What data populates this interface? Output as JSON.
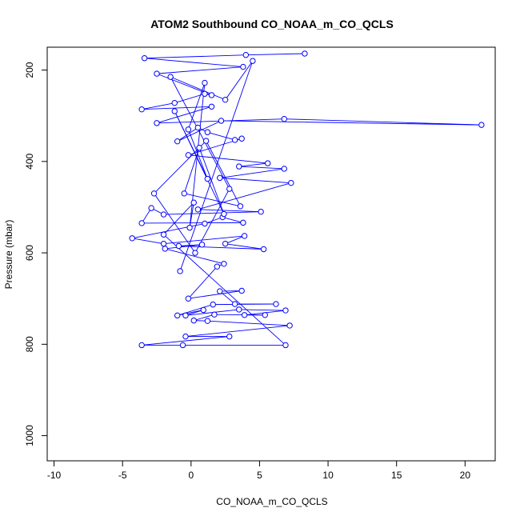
{
  "chart_data": {
    "type": "line",
    "title": "ATOM2 Southbound CO_NOAA_m_CO_QCLS",
    "xlabel": "CO_NOAA_m_CO_QCLS",
    "ylabel": "Pressure (mbar)",
    "xlim": [
      -10.5,
      22.2
    ],
    "ylim": [
      1055,
      150
    ],
    "y_reversed": true,
    "x_ticks": [
      -10,
      -5,
      0,
      5,
      10,
      15,
      20
    ],
    "x_tick_labels": [
      "-10",
      "-5",
      "0",
      "5",
      "10",
      "15",
      "20"
    ],
    "y_ticks": [
      200,
      400,
      600,
      800,
      1000
    ],
    "y_tick_labels": [
      "200",
      "400",
      "600",
      "800",
      "1000"
    ],
    "grid": false,
    "color": "#0000ff",
    "series": [
      {
        "points": [
          [
            8.3,
            164
          ],
          [
            4.0,
            167
          ],
          [
            -3.4,
            174
          ],
          [
            3.8,
            193
          ],
          [
            -2.5,
            208
          ],
          [
            1.5,
            255
          ],
          [
            1.0,
            252
          ],
          [
            -1.2,
            272
          ],
          [
            -3.6,
            286
          ],
          [
            1.5,
            280
          ],
          [
            -2.5,
            316
          ],
          [
            6.8,
            307
          ],
          [
            21.2,
            320
          ],
          [
            2.2,
            311
          ],
          [
            -1.0,
            356
          ],
          [
            0.5,
            326
          ],
          [
            1.2,
            336
          ],
          [
            3.2,
            353
          ],
          [
            3.7,
            350
          ],
          [
            -0.2,
            386
          ],
          [
            5.6,
            404
          ],
          [
            3.5,
            411
          ],
          [
            6.8,
            416
          ],
          [
            2.1,
            436
          ],
          [
            7.3,
            447
          ],
          [
            0.5,
            505
          ],
          [
            5.1,
            510
          ],
          [
            -2.0,
            516
          ],
          [
            -2.9,
            502
          ],
          [
            -3.6,
            535
          ],
          [
            3.8,
            534
          ],
          [
            2.3,
            522
          ],
          [
            1.0,
            536
          ],
          [
            -4.3,
            568
          ],
          [
            -2.0,
            580
          ],
          [
            3.9,
            563
          ],
          [
            2.5,
            580
          ],
          [
            5.3,
            592
          ],
          [
            -0.9,
            585
          ],
          [
            0.8,
            582
          ],
          [
            -1.9,
            591
          ],
          [
            2.4,
            624
          ],
          [
            1.9,
            630
          ],
          [
            -0.2,
            700
          ],
          [
            3.7,
            683
          ],
          [
            2.1,
            684
          ],
          [
            3.2,
            712
          ],
          [
            6.2,
            712
          ],
          [
            1.6,
            713
          ],
          [
            -1.0,
            737
          ],
          [
            0.9,
            725
          ],
          [
            -0.4,
            737
          ],
          [
            3.5,
            724
          ],
          [
            6.9,
            726
          ],
          [
            3.9,
            736
          ],
          [
            5.4,
            736
          ],
          [
            1.7,
            735
          ],
          [
            0.2,
            748
          ],
          [
            1.2,
            749
          ],
          [
            7.2,
            759
          ],
          [
            -0.4,
            783
          ],
          [
            2.8,
            783
          ],
          [
            -3.6,
            802
          ],
          [
            -0.6,
            802
          ],
          [
            6.9,
            802
          ],
          [
            -2.0,
            560
          ],
          [
            0.2,
            490
          ],
          [
            -0.1,
            545
          ],
          [
            1.0,
            228
          ],
          [
            -0.2,
            330
          ],
          [
            1.2,
            438
          ],
          [
            -1.2,
            290
          ],
          [
            2.4,
            515
          ],
          [
            0.6,
            370
          ],
          [
            -0.5,
            470
          ],
          [
            3.6,
            498
          ],
          [
            1.1,
            355
          ],
          [
            -2.7,
            470
          ],
          [
            0.3,
            600
          ],
          [
            2.8,
            460
          ],
          [
            -1.5,
            215
          ],
          [
            2.5,
            265
          ],
          [
            4.5,
            180
          ],
          [
            -0.8,
            640
          ]
        ]
      }
    ]
  }
}
